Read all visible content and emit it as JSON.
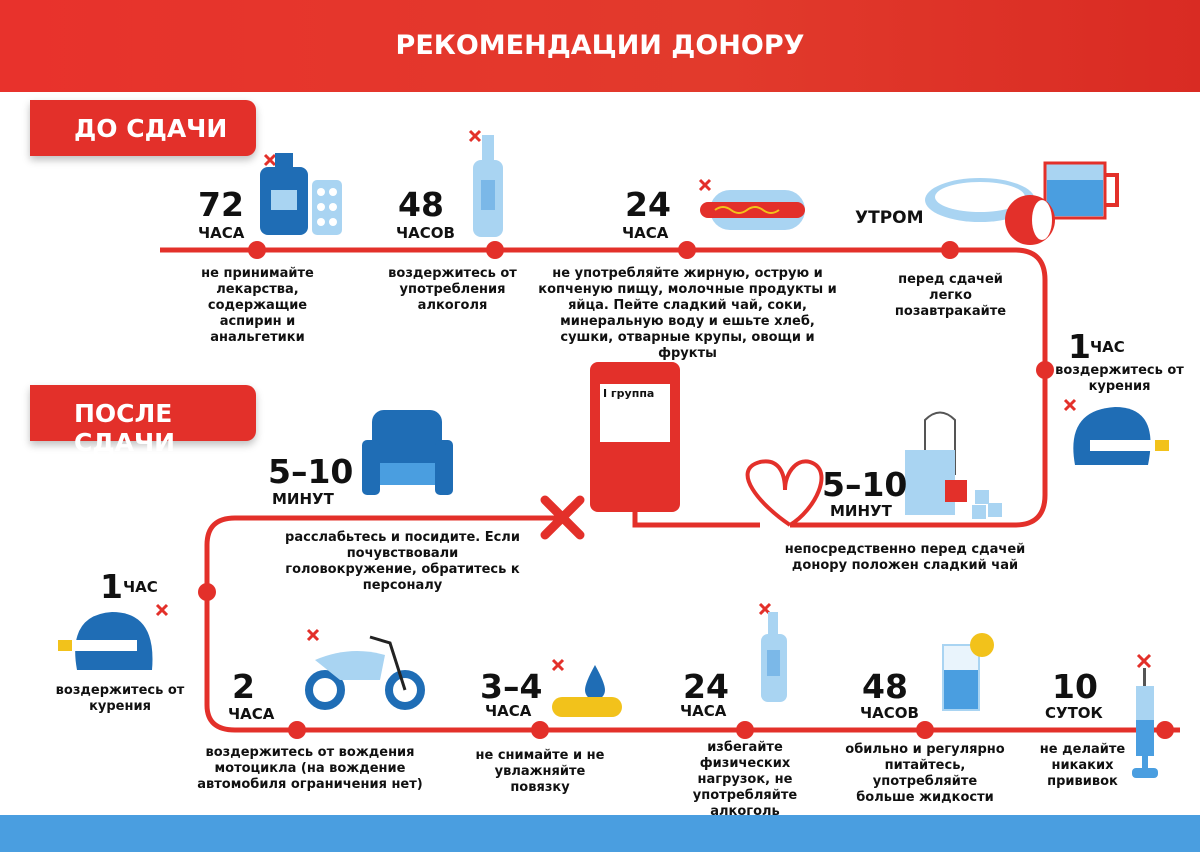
{
  "title": "РЕКОМЕНДАЦИИ ДОНОРУ",
  "before": {
    "label": "ДО СДАЧИ",
    "steps": [
      {
        "num": "72",
        "unit": "ЧАСА",
        "text": "не принимайте лекарства, содержащие аспирин и анальгетики",
        "icon": "medicine-bottle-pills-icon"
      },
      {
        "num": "48",
        "unit": "ЧАСОВ",
        "text": "воздержитесь от употребления алкоголя",
        "icon": "bottle-icon"
      },
      {
        "num": "24",
        "unit": "ЧАСА",
        "text": "не употребляйте жирную, острую и копченую пищу, молочные продукты и яйца. Пейте сладкий чай, соки, минеральную воду и ешьте хлеб, сушки, отварные крупы, овощи и фрукты",
        "icon": "hotdog-icon"
      },
      {
        "num": "",
        "unit": "УТРОМ",
        "text": "перед сдачей легко позавтракайте",
        "icon": "breakfast-icon"
      },
      {
        "num": "1",
        "unit": "ЧАС",
        "text": "воздержитесь от курения",
        "icon": "no-smoking-icon"
      },
      {
        "num": "5–10",
        "unit": "МИНУТ",
        "text": "непосредственно перед сдачей донору положен сладкий чай",
        "icon": "tea-icon"
      }
    ]
  },
  "blood_bag": {
    "label": "I группа"
  },
  "after": {
    "label": "ПОСЛЕ СДАЧИ",
    "steps": [
      {
        "num": "5–10",
        "unit": "МИНУТ",
        "text": "расслабьтесь и посидите. Если почувствовали головокружение, обратитесь к персоналу",
        "icon": "armchair-icon"
      },
      {
        "num": "1",
        "unit": "ЧАС",
        "text": "воздержитесь от курения",
        "icon": "no-smoking-icon"
      },
      {
        "num": "2",
        "unit": "ЧАСА",
        "text": "воздержитесь от вождения мотоцикла (на вождение автомобиля ограничения нет)",
        "icon": "motorcycle-icon"
      },
      {
        "num": "3–4",
        "unit": "ЧАСА",
        "text": "не снимайте и не увлажняйте повязку",
        "icon": "bandage-icon"
      },
      {
        "num": "24",
        "unit": "ЧАСА",
        "text": "избегайте физических нагрузок, не употребляйте алкоголь",
        "icon": "bottle-icon"
      },
      {
        "num": "48",
        "unit": "ЧАСОВ",
        "text": "обильно и регулярно питайтесь, употребляйте больше жидкости",
        "icon": "glass-icon"
      },
      {
        "num": "10",
        "unit": "СУТОК",
        "text": "не делайте никаких прививок",
        "icon": "syringe-icon"
      }
    ]
  },
  "colors": {
    "red": "#e3302a",
    "blue": "#1f6db5",
    "light_blue": "#a9d4f2",
    "footer": "#4a9ee0"
  }
}
